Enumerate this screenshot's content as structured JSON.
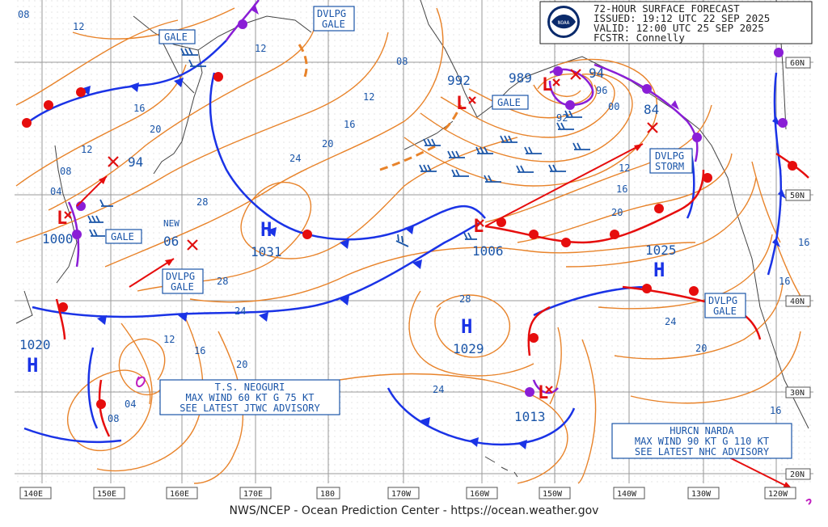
{
  "header": {
    "line1": "72-HOUR SURFACE FORECAST",
    "line2": "ISSUED: 19:12 UTC 22 SEP 2025",
    "line3": "VALID:  12:00 UTC 25 SEP 2025",
    "line4": "FCSTR:  Connelly"
  },
  "footer": "NWS/NCEP - Ocean Prediction Center - https://ocean.weather.gov",
  "logo": "NOAA",
  "lon_labels": [
    "140E",
    "150E",
    "160E",
    "170E",
    "180",
    "170W",
    "160W",
    "150W",
    "140W",
    "130W",
    "120W"
  ],
  "lat_labels": [
    "60N",
    "50N",
    "40N",
    "30N",
    "20N"
  ],
  "pressure_centers": [
    {
      "type": "H",
      "value": "1031"
    },
    {
      "type": "H",
      "value": "1025"
    },
    {
      "type": "H",
      "value": "1029"
    },
    {
      "type": "H",
      "value": "1020"
    },
    {
      "type": "L",
      "value": "1000"
    },
    {
      "type": "L",
      "value": "992"
    },
    {
      "type": "L",
      "value": "989"
    },
    {
      "type": "L",
      "value": "1006"
    },
    {
      "type": "L",
      "value": "1013"
    }
  ],
  "center_values": [
    "94",
    "94",
    "84",
    "06",
    "NEW"
  ],
  "warnings": {
    "gale_nw": "GALE",
    "dvlpg_gale_top": [
      "DVLPG",
      "GALE"
    ],
    "gale_west": "GALE",
    "dvlpg_gale_west": [
      "DVLPG",
      "GALE"
    ],
    "gale_alaska": "GALE",
    "dvlpg_storm": [
      "DVLPG",
      "STORM"
    ],
    "dvlpg_gale_east": [
      "DVLPG",
      "GALE"
    ]
  },
  "storms": {
    "neoguri": [
      "T.S. NEOGURI",
      "MAX WIND 60 KT G 75 KT",
      "SEE LATEST JTWC ADVISORY"
    ],
    "narda": [
      "HURCN NARDA",
      "MAX WIND 90 KT G 110 KT",
      "SEE LATEST NHC ADVISORY"
    ]
  },
  "isobar_labels": [
    "08",
    "12",
    "12",
    "16",
    "20",
    "12",
    "16",
    "20",
    "24",
    "28",
    "28",
    "24",
    "12",
    "16",
    "20",
    "04",
    "08",
    "04",
    "08",
    "12",
    "08",
    "92",
    "96",
    "00",
    "12",
    "16",
    "20",
    "24",
    "20",
    "28",
    "24",
    "16",
    "16",
    "16"
  ],
  "colors": {
    "isobar": "#e8832a",
    "cold_front": "#1a33e6",
    "warm_front": "#e60d0d",
    "occluded": "#8a1ed6",
    "label_blue": "#1a55a8",
    "low_red": "#e01010",
    "grid": "#9a9a9a",
    "coast": "#444444"
  }
}
